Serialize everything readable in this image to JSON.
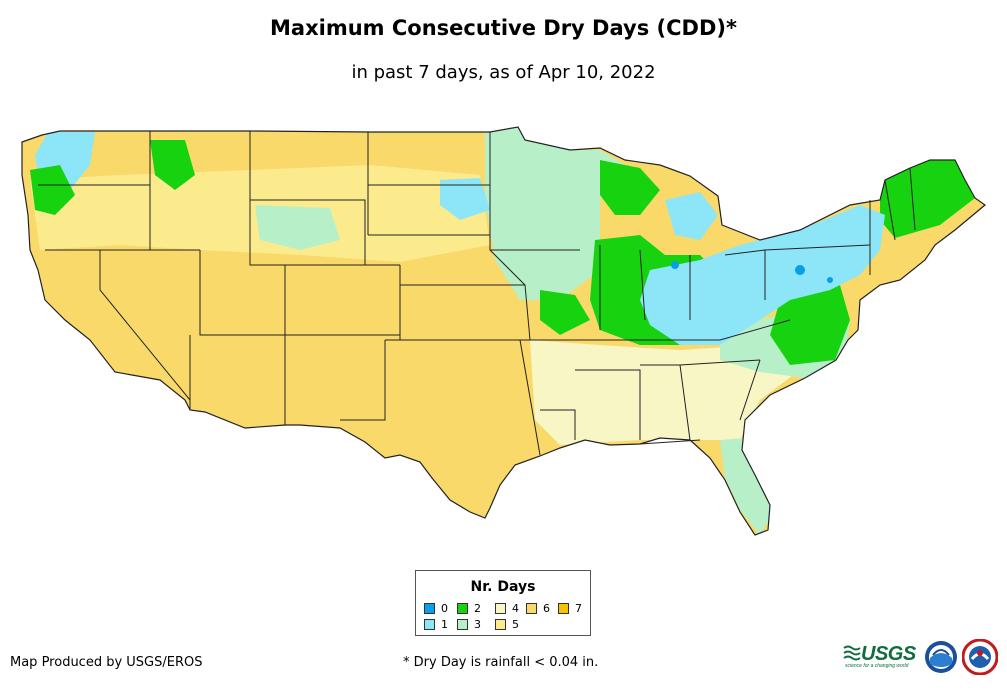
{
  "title": "Maximum Consecutive Dry Days (CDD)*",
  "subtitle": "in past 7 days, as of Apr 10, 2022",
  "legend": {
    "title": "Nr. Days",
    "items": [
      {
        "value": "0",
        "color": "#0a9ee6"
      },
      {
        "value": "1",
        "color": "#8de6f7"
      },
      {
        "value": "2",
        "color": "#17d20f"
      },
      {
        "value": "3",
        "color": "#b7f0c8"
      },
      {
        "value": "4",
        "color": "#f8f6c4"
      },
      {
        "value": "5",
        "color": "#fbeb8d"
      },
      {
        "value": "6",
        "color": "#f9d96a"
      },
      {
        "value": "7",
        "color": "#f5c400"
      }
    ]
  },
  "footer": {
    "credit": "Map Produced by USGS/EROS",
    "note": "* Dry Day is rainfall < 0.04 in."
  },
  "logos": {
    "usgs_word": "USGS",
    "usgs_tagline": "science for a changing world",
    "noaa": "NOAA",
    "nws": "National Weather Service"
  }
}
